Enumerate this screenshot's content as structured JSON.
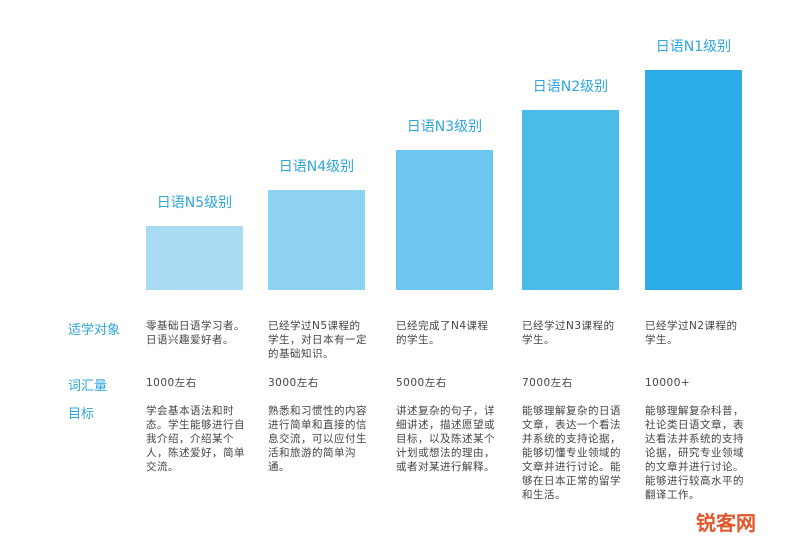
{
  "row_labels": {
    "target": "适学对象",
    "vocabulary": "词汇量",
    "goal": "目标"
  },
  "levels": [
    {
      "title": "日语N5级别",
      "target": "零基础日语学习者。日语兴趣爱好者。",
      "vocabulary": "1000左右",
      "goal": "学会基本语法和时态。学生能够进行自我介绍，介绍某个人，陈述爱好，简单交流。"
    },
    {
      "title": "日语N4级别",
      "target": "已经学过N5课程的学生，对日本有一定的基础知识。",
      "vocabulary": "3000左右",
      "goal": "熟悉和习惯性的内容进行简单和直接的信息交流，可以应付生活和旅游的简单沟通。"
    },
    {
      "title": "日语N3级别",
      "target": "已经完成了N4课程的学生。",
      "vocabulary": "5000左右",
      "goal": "讲述复杂的句子，详细讲述，描述愿望或目标，以及陈述某个计划或想法的理由，或者对某进行解释。"
    },
    {
      "title": "日语N2级别",
      "target": "已经学过N3课程的学生。",
      "vocabulary": "7000左右",
      "goal": "能够理解复杂的日语文章，表达一个看法并系统的支持论据，能够切懂专业领域的文章并进行讨论。能够在日本正常的留学和生活。"
    },
    {
      "title": "日语N1级别",
      "target": "已经学过N2课程的学生。",
      "vocabulary": "10000+",
      "goal": "能够理解复杂科普，社论类日语文章，表达看法并系统的支持论据，研究专业领域的文章并进行讨论。能够进行较高水平的翻译工作。"
    }
  ],
  "watermark": "锐客网"
}
